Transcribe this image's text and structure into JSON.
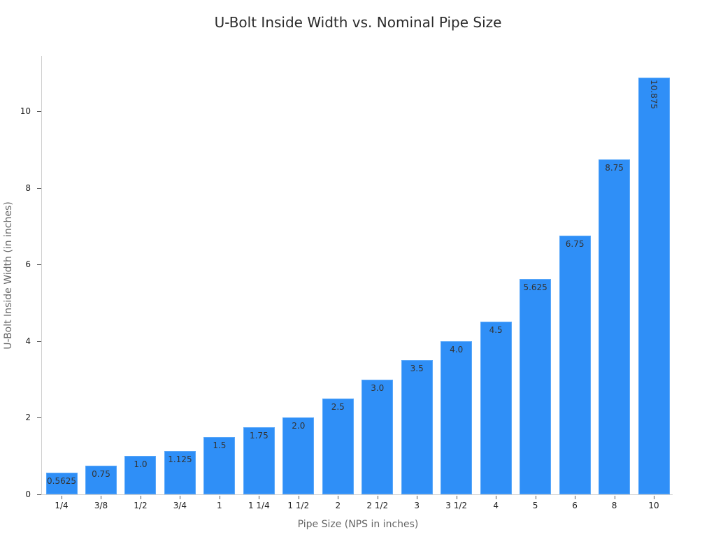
{
  "chart_data": {
    "type": "bar",
    "title": "U-Bolt Inside Width vs. Nominal Pipe Size",
    "xlabel": "Pipe Size (NPS in inches)",
    "ylabel": "U-Bolt Inside Width (in inches)",
    "categories": [
      "1/4",
      "3/8",
      "1/2",
      "3/4",
      "1",
      "1 1/4",
      "1 1/2",
      "2",
      "2 1/2",
      "3",
      "3 1/2",
      "4",
      "5",
      "6",
      "8",
      "10"
    ],
    "values": [
      0.5625,
      0.75,
      1.0,
      1.125,
      1.5,
      1.75,
      2.0,
      2.5,
      3.0,
      3.5,
      4.0,
      4.5,
      5.625,
      6.75,
      8.75,
      10.875
    ],
    "data_labels": [
      "0.5625",
      "0.75",
      "1.0",
      "1.125",
      "1.5",
      "1.75",
      "2.0",
      "2.5",
      "3.0",
      "3.5",
      "4.0",
      "4.5",
      "5.625",
      "6.75",
      "8.75",
      "10.875"
    ],
    "yticks": [
      0,
      2,
      4,
      6,
      8,
      10
    ],
    "ylim": [
      0,
      11.45
    ],
    "grid": false,
    "legend": null,
    "bar_color": "#2f8ff7"
  }
}
